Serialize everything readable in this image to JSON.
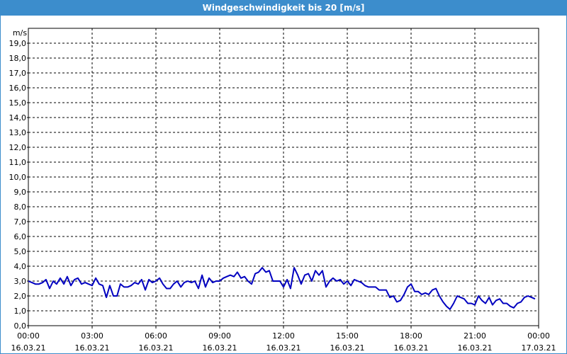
{
  "window": {
    "title": "Windgeschwindigkeit bis 20 [m/s]"
  },
  "colors": {
    "title_bar": "#3c8dcc",
    "series": "#0000c0",
    "grid": "#000000"
  },
  "chart_data": {
    "type": "line",
    "title": "Windgeschwindigkeit bis 20 [m/s]",
    "ylabel": "m/s",
    "ylim": [
      0,
      20
    ],
    "y_ticks": [
      "0,0",
      "1,0",
      "2,0",
      "3,0",
      "4,0",
      "5,0",
      "6,0",
      "7,0",
      "8,0",
      "9,0",
      "10,0",
      "11,0",
      "12,0",
      "13,0",
      "14,0",
      "15,0",
      "16,0",
      "17,0",
      "18,0",
      "19,0"
    ],
    "xlim": [
      "16.03.21 00:00",
      "17.03.21 00:00"
    ],
    "x_ticks": [
      {
        "time": "00:00",
        "date": "16.03.21"
      },
      {
        "time": "03:00",
        "date": "16.03.21"
      },
      {
        "time": "06:00",
        "date": "16.03.21"
      },
      {
        "time": "09:00",
        "date": "16.03.21"
      },
      {
        "time": "12:00",
        "date": "16.03.21"
      },
      {
        "time": "15:00",
        "date": "16.03.21"
      },
      {
        "time": "18:00",
        "date": "16.03.21"
      },
      {
        "time": "21:00",
        "date": "16.03.21"
      },
      {
        "time": "00:00",
        "date": "17.03.21"
      }
    ],
    "grid": true,
    "series": [
      {
        "x": [
          0,
          0.17,
          0.33,
          0.5,
          0.67,
          0.83,
          1,
          1.17,
          1.33,
          1.5,
          1.67,
          1.83,
          2,
          2.17,
          2.33,
          2.5,
          2.67,
          2.83,
          3,
          3.17,
          3.33,
          3.5,
          3.67,
          3.83,
          4,
          4.17,
          4.33,
          4.5,
          4.67,
          4.83,
          5,
          5.17,
          5.33,
          5.5,
          5.67,
          5.83,
          6,
          6.17,
          6.33,
          6.5,
          6.67,
          6.83,
          7,
          7.17,
          7.33,
          7.5,
          7.67,
          7.83,
          8,
          8.17,
          8.33,
          8.5,
          8.67,
          8.83,
          9,
          9.17,
          9.33,
          9.5,
          9.67,
          9.83,
          10,
          10.17,
          10.33,
          10.5,
          10.67,
          10.83,
          11,
          11.17,
          11.33,
          11.5,
          11.67,
          11.83,
          12,
          12.17,
          12.33,
          12.5,
          12.67,
          12.83,
          13,
          13.17,
          13.33,
          13.5,
          13.67,
          13.83,
          14,
          14.17,
          14.33,
          14.5,
          14.67,
          14.83,
          15,
          15.17,
          15.33,
          15.5,
          15.67,
          15.83,
          16,
          16.17,
          16.33,
          16.5,
          16.67,
          16.83,
          17,
          17.17,
          17.33,
          17.5,
          17.67,
          17.83,
          18,
          18.17,
          18.33,
          18.5,
          18.67,
          18.83,
          19,
          19.17,
          19.33,
          19.5,
          19.67,
          19.83,
          20,
          20.17,
          20.33,
          20.5,
          20.67,
          20.83,
          21,
          21.17,
          21.33,
          21.5,
          21.67,
          21.83,
          22,
          22.17,
          22.33,
          22.5,
          22.67,
          22.83,
          23,
          23.17,
          23.33,
          23.5,
          23.67,
          23.83
        ],
        "y": [
          3.0,
          2.9,
          2.8,
          2.8,
          2.9,
          3.1,
          2.5,
          3.0,
          2.8,
          3.2,
          2.8,
          3.3,
          2.7,
          3.1,
          3.2,
          2.8,
          2.9,
          2.8,
          2.7,
          3.2,
          2.8,
          2.7,
          1.9,
          2.7,
          2.0,
          2.0,
          2.8,
          2.6,
          2.6,
          2.7,
          2.9,
          2.8,
          3.1,
          2.4,
          3.1,
          2.9,
          3.0,
          3.2,
          2.8,
          2.5,
          2.5,
          2.8,
          3.0,
          2.6,
          2.9,
          3.0,
          2.9,
          3.0,
          2.5,
          3.4,
          2.6,
          3.2,
          2.9,
          3.0,
          3.0,
          3.2,
          3.3,
          3.4,
          3.3,
          3.6,
          3.2,
          3.3,
          3.0,
          2.8,
          3.5,
          3.6,
          3.9,
          3.6,
          3.7,
          3.0,
          3.0,
          3.0,
          2.6,
          3.1,
          2.5,
          3.9,
          3.4,
          2.8,
          3.4,
          3.5,
          3.0,
          3.7,
          3.4,
          3.7,
          2.6,
          3.0,
          3.2,
          3.0,
          3.1,
          2.8,
          3.0,
          2.7,
          3.1,
          3.0,
          2.9,
          2.7,
          2.6,
          2.6,
          2.6,
          2.4,
          2.4,
          2.4,
          1.9,
          2.0,
          1.6,
          1.7,
          2.1,
          2.6,
          2.8,
          2.3,
          2.3,
          2.1,
          2.2,
          2.1,
          2.4,
          2.5,
          2.0,
          1.6,
          1.3,
          1.1,
          1.5,
          2.0,
          1.9,
          1.8,
          1.5,
          1.5,
          1.4,
          2.0,
          1.7,
          1.5,
          1.9,
          1.4,
          1.7,
          1.8,
          1.5,
          1.5,
          1.3,
          1.2,
          1.5,
          1.6,
          1.9,
          2.0,
          1.9,
          1.8
        ]
      }
    ]
  }
}
